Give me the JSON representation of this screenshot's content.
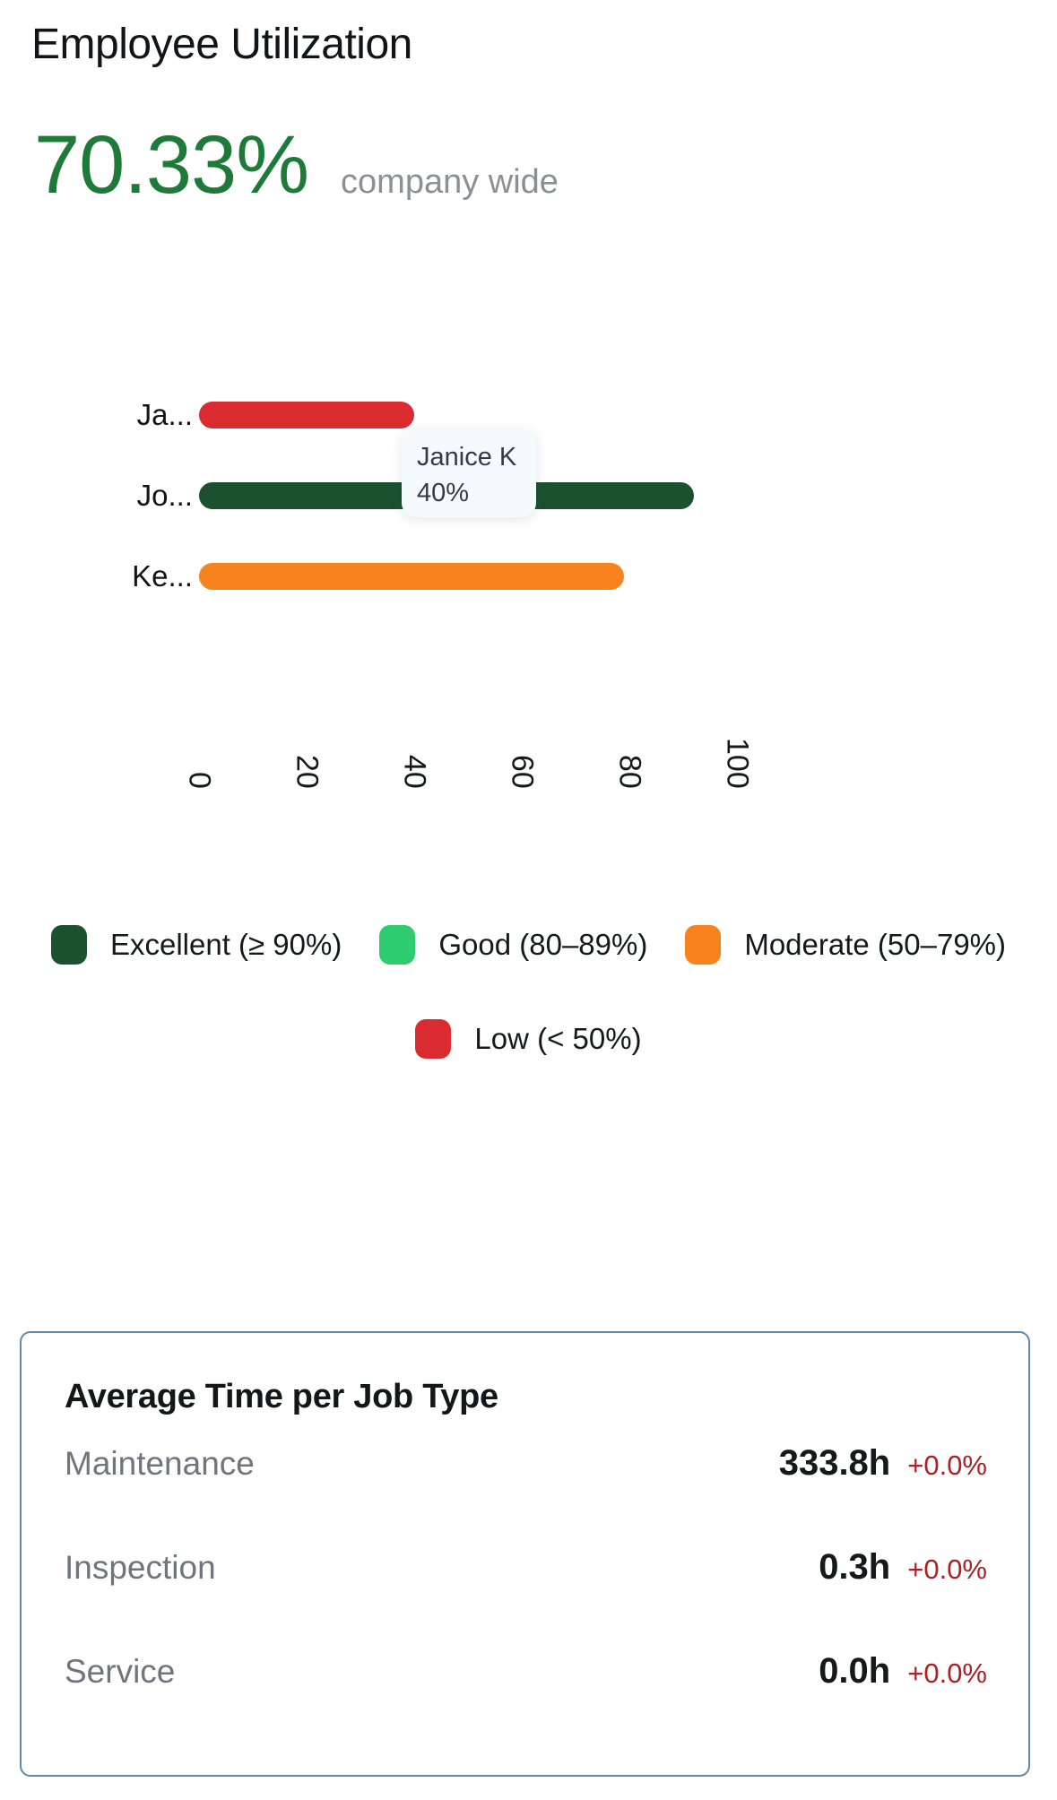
{
  "header": {
    "title": "Employee Utilization",
    "metric_value": "70.33%",
    "metric_caption": "company wide"
  },
  "chart_data": {
    "type": "bar",
    "orientation": "horizontal",
    "title": "Employee Utilization",
    "categories": [
      "Ja...",
      "Jo...",
      "Ke..."
    ],
    "values": [
      40,
      92,
      79
    ],
    "bar_colors": [
      "#da2b31",
      "#1c5130",
      "#f6831e"
    ],
    "xlim": [
      0,
      100
    ],
    "x_ticks": [
      0,
      20,
      40,
      60,
      80,
      100
    ],
    "grid": false,
    "legend_position": "bottom",
    "tooltip": {
      "name": "Janice K",
      "value": "40%"
    },
    "legend": [
      {
        "label": "Excellent (≥ 90%)",
        "color": "#1c5130"
      },
      {
        "label": "Good (80–89%)",
        "color": "#2ecc6e"
      },
      {
        "label": "Moderate (50–79%)",
        "color": "#f6831e"
      },
      {
        "label": "Low (< 50%)",
        "color": "#da2b31"
      }
    ]
  },
  "job_type_card": {
    "title": "Average Time per Job Type",
    "rows": [
      {
        "label": "Maintenance",
        "value": "333.8h",
        "delta": "+0.0%"
      },
      {
        "label": "Inspection",
        "value": "0.3h",
        "delta": "+0.0%"
      },
      {
        "label": "Service",
        "value": "0.0h",
        "delta": "+0.0%"
      }
    ]
  },
  "colors": {
    "accent_green": "#1e7a38",
    "gray_caption": "#8b9097",
    "label_gray": "#70757d",
    "delta_red": "#a82328",
    "card_border": "#6089ae",
    "tooltip_bg": "#f5fafd"
  }
}
